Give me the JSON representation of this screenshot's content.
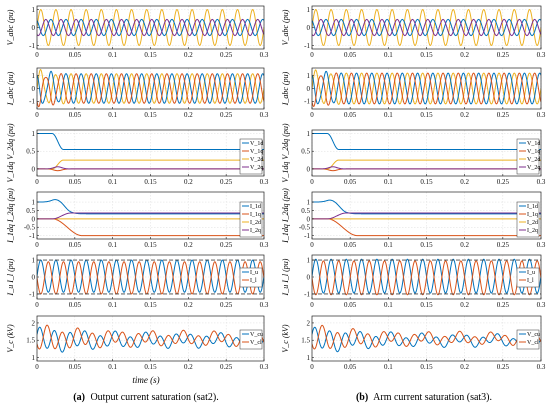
{
  "x_axis_label": "time (s)",
  "captions": [
    {
      "tag": "(a)",
      "text": "Output current saturation (sat2)."
    },
    {
      "tag": "(b)",
      "text": "Arm current saturation (sat3)."
    }
  ],
  "colors": {
    "blue": "#0072BD",
    "orange": "#D95319",
    "yellow": "#EDB120",
    "purple": "#7E2F8E"
  },
  "chart_data": [
    {
      "type": "line",
      "panel": "a1",
      "ylabel": "V_abc (pu)",
      "xlim": [
        0,
        0.3
      ],
      "ylim": [
        -1.2,
        1.2
      ],
      "x_ticks": [
        0,
        0.05,
        0.1,
        0.15,
        0.2,
        0.25,
        0.3
      ],
      "x_tick_labels": [
        "0",
        "0.05",
        "0.1",
        "0.15",
        "0.2",
        "0.25",
        "0.3"
      ],
      "y_ticks": [
        -1,
        0,
        1
      ],
      "y_tick_labels": [
        "-1",
        "0",
        "1"
      ],
      "legend": [],
      "series": [
        {
          "kind": "sine",
          "color": "yellow",
          "amp": 1.0,
          "freq": 50,
          "phase": 0.0
        },
        {
          "kind": "sine",
          "color": "blue",
          "amp": 0.45,
          "freq": 50,
          "phase": 2.094
        },
        {
          "kind": "sine",
          "color": "purple",
          "amp": 0.45,
          "freq": 50,
          "phase": -2.094
        }
      ]
    },
    {
      "type": "line",
      "panel": "a2",
      "ylabel": "I_abc (pu)",
      "xlim": [
        0,
        0.3
      ],
      "ylim": [
        -1.6,
        1.6
      ],
      "x_ticks": [
        0,
        0.05,
        0.1,
        0.15,
        0.2,
        0.25,
        0.3
      ],
      "x_tick_labels": [
        "0",
        "0.05",
        "0.1",
        "0.15",
        "0.2",
        "0.25",
        "0.3"
      ],
      "y_ticks": [
        -1,
        0,
        1
      ],
      "y_tick_labels": [
        "-1",
        "0",
        "1"
      ],
      "legend": [],
      "series": [
        {
          "kind": "sine",
          "color": "yellow",
          "amp": 1.15,
          "freq": 50,
          "phase": 0.0,
          "transient_amp": 0.4,
          "transient_end": 0.04
        },
        {
          "kind": "sine",
          "color": "blue",
          "amp": 1.15,
          "freq": 50,
          "phase": 2.094,
          "transient_amp": 0.4,
          "transient_end": 0.04
        },
        {
          "kind": "sine",
          "color": "orange",
          "amp": 1.15,
          "freq": 50,
          "phase": -2.094,
          "transient_amp": 0.4,
          "transient_end": 0.04
        }
      ]
    },
    {
      "type": "line",
      "panel": "a3",
      "ylabel": "V_1dq V_2dq (pu)",
      "xlim": [
        0,
        0.3
      ],
      "ylim": [
        -0.2,
        1.1
      ],
      "x_ticks": [
        0,
        0.05,
        0.1,
        0.15,
        0.2,
        0.25,
        0.3
      ],
      "x_tick_labels": [
        "0",
        "0.05",
        "0.1",
        "0.15",
        "0.2",
        "0.25",
        "0.3"
      ],
      "y_ticks": [
        0,
        0.5,
        1
      ],
      "y_tick_labels": [
        "0",
        "0.5",
        "1"
      ],
      "legend": [
        "V_1d",
        "V_1q",
        "V_2d",
        "V_2q"
      ],
      "series": [
        {
          "kind": "step",
          "color": "blue",
          "y0": 1.0,
          "y1": 0.55,
          "t0": 0.02,
          "t1": 0.035
        },
        {
          "kind": "step",
          "color": "orange",
          "y0": 0.0,
          "y1": 0.0,
          "t0": 0.02,
          "t1": 0.035,
          "bump": -0.05
        },
        {
          "kind": "step",
          "color": "yellow",
          "y0": 0.0,
          "y1": 0.25,
          "t0": 0.02,
          "t1": 0.035
        },
        {
          "kind": "step",
          "color": "purple",
          "y0": 0.0,
          "y1": 0.0,
          "t0": 0.02,
          "t1": 0.035,
          "bump": 0.06
        }
      ]
    },
    {
      "type": "line",
      "panel": "a4",
      "ylabel": "I_1dq I_2dq (pu)",
      "xlim": [
        0,
        0.3
      ],
      "ylim": [
        -1.2,
        1.6
      ],
      "x_ticks": [
        0,
        0.05,
        0.1,
        0.15,
        0.2,
        0.25,
        0.3
      ],
      "x_tick_labels": [
        "0",
        "0.05",
        "0.1",
        "0.15",
        "0.2",
        "0.25",
        "0.3"
      ],
      "y_ticks": [
        -1,
        -0.5,
        0,
        0.5,
        1
      ],
      "y_tick_labels": [
        "-1",
        "-0.5",
        "0",
        "0.5",
        "1"
      ],
      "legend": [
        "I_1d",
        "I_1q",
        "I_2d",
        "I_2q"
      ],
      "series": [
        {
          "kind": "step",
          "color": "blue",
          "y0": 1.0,
          "y1": 0.3,
          "t0": 0.02,
          "t1": 0.045,
          "bump": 0.3
        },
        {
          "kind": "step",
          "color": "orange",
          "y0": 0.0,
          "y1": -1.0,
          "t0": 0.02,
          "t1": 0.06
        },
        {
          "kind": "step",
          "color": "yellow",
          "y0": 0.0,
          "y1": 0.0,
          "t0": 0.02,
          "t1": 0.04
        },
        {
          "kind": "step",
          "color": "purple",
          "y0": 0.0,
          "y1": 0.35,
          "t0": 0.02,
          "t1": 0.045
        }
      ]
    },
    {
      "type": "line",
      "panel": "a5",
      "ylabel": "I_u I_l (pu)",
      "xlim": [
        0,
        0.3
      ],
      "ylim": [
        -1.3,
        1.3
      ],
      "x_ticks": [
        0,
        0.05,
        0.1,
        0.15,
        0.2,
        0.25,
        0.3
      ],
      "x_tick_labels": [
        "0",
        "0.05",
        "0.1",
        "0.15",
        "0.2",
        "0.25",
        "0.3"
      ],
      "y_ticks": [
        -1,
        0,
        1
      ],
      "y_tick_labels": [
        "-1",
        "0",
        "1"
      ],
      "legend": [
        "I_u",
        "I_l"
      ],
      "limits": [
        1.0,
        -1.0
      ],
      "series": [
        {
          "kind": "sine",
          "color": "blue",
          "amp": 0.95,
          "freq": 50,
          "phase": 0.0,
          "offset": 0.05
        },
        {
          "kind": "sine",
          "color": "orange",
          "amp": 0.95,
          "freq": 50,
          "phase": 3.1416,
          "offset": -0.05
        }
      ]
    },
    {
      "type": "line",
      "panel": "a6",
      "ylabel": "V_c (kV)",
      "xlim": [
        0,
        0.3
      ],
      "ylim": [
        0.9,
        2.2
      ],
      "x_ticks": [
        0,
        0.05,
        0.1,
        0.15,
        0.2,
        0.25,
        0.3
      ],
      "x_tick_labels": [
        "0",
        "0.05",
        "0.1",
        "0.15",
        "0.2",
        "0.25",
        "0.3"
      ],
      "y_ticks": [
        1,
        1.5,
        2
      ],
      "y_tick_labels": [
        "1",
        "1.5",
        "2"
      ],
      "legend": [
        "V_cu",
        "V_cl"
      ],
      "series": [
        {
          "kind": "damped",
          "color": "blue",
          "base": 1.5,
          "amp0": 0.35,
          "amp1": 0.15,
          "freq": 50,
          "phase": 0.5
        },
        {
          "kind": "damped",
          "color": "orange",
          "base": 1.55,
          "amp0": 0.35,
          "amp1": 0.15,
          "freq": 50,
          "phase": 3.6
        }
      ]
    },
    {
      "type": "line",
      "panel": "b1",
      "ylabel": "V_abc (pu)",
      "xlim": [
        0,
        0.3
      ],
      "ylim": [
        -1.2,
        1.2
      ],
      "x_ticks": [
        0,
        0.05,
        0.1,
        0.15,
        0.2,
        0.25,
        0.3
      ],
      "x_tick_labels": [
        "0",
        "0.05",
        "0.1",
        "0.15",
        "0.2",
        "0.25",
        "0.3"
      ],
      "y_ticks": [
        -1,
        0,
        1
      ],
      "y_tick_labels": [
        "-1",
        "0",
        "1"
      ],
      "legend": [],
      "series": [
        {
          "kind": "sine",
          "color": "yellow",
          "amp": 1.0,
          "freq": 50,
          "phase": 0.0
        },
        {
          "kind": "sine",
          "color": "blue",
          "amp": 0.45,
          "freq": 50,
          "phase": 2.094
        },
        {
          "kind": "sine",
          "color": "purple",
          "amp": 0.45,
          "freq": 50,
          "phase": -2.094
        }
      ]
    },
    {
      "type": "line",
      "panel": "b2",
      "ylabel": "I_abc (pu)",
      "xlim": [
        0,
        0.3
      ],
      "ylim": [
        -1.6,
        1.6
      ],
      "x_ticks": [
        0,
        0.05,
        0.1,
        0.15,
        0.2,
        0.25,
        0.3
      ],
      "x_tick_labels": [
        "0",
        "0.05",
        "0.1",
        "0.15",
        "0.2",
        "0.25",
        "0.3"
      ],
      "y_ticks": [
        -1,
        0,
        1
      ],
      "y_tick_labels": [
        "-1",
        "0",
        "1"
      ],
      "legend": [],
      "series": [
        {
          "kind": "sine",
          "color": "yellow",
          "amp": 1.2,
          "freq": 50,
          "phase": 0.0,
          "transient_amp": 0.3,
          "transient_end": 0.04
        },
        {
          "kind": "sine",
          "color": "blue",
          "amp": 1.2,
          "freq": 50,
          "phase": 2.094,
          "transient_amp": 0.3,
          "transient_end": 0.04
        },
        {
          "kind": "sine",
          "color": "orange",
          "amp": 1.2,
          "freq": 50,
          "phase": -2.094,
          "transient_amp": 0.3,
          "transient_end": 0.04
        }
      ]
    },
    {
      "type": "line",
      "panel": "b3",
      "ylabel": "V_1dq V_2dq (pu)",
      "xlim": [
        0,
        0.3
      ],
      "ylim": [
        -0.2,
        1.1
      ],
      "x_ticks": [
        0,
        0.05,
        0.1,
        0.15,
        0.2,
        0.25,
        0.3
      ],
      "x_tick_labels": [
        "0",
        "0.05",
        "0.1",
        "0.15",
        "0.2",
        "0.25",
        "0.3"
      ],
      "y_ticks": [
        0,
        0.5,
        1
      ],
      "y_tick_labels": [
        "0",
        "0.5",
        "1"
      ],
      "legend": [
        "V_1d",
        "V_1q",
        "V_2d",
        "V_2q"
      ],
      "series": [
        {
          "kind": "step",
          "color": "blue",
          "y0": 1.0,
          "y1": 0.55,
          "t0": 0.02,
          "t1": 0.035
        },
        {
          "kind": "step",
          "color": "orange",
          "y0": 0.0,
          "y1": 0.0,
          "t0": 0.02,
          "t1": 0.035,
          "bump": -0.05
        },
        {
          "kind": "step",
          "color": "yellow",
          "y0": 0.0,
          "y1": 0.25,
          "t0": 0.02,
          "t1": 0.035
        },
        {
          "kind": "step",
          "color": "purple",
          "y0": 0.0,
          "y1": 0.0,
          "t0": 0.02,
          "t1": 0.035,
          "bump": 0.06
        }
      ]
    },
    {
      "type": "line",
      "panel": "b4",
      "ylabel": "I_1dq I_2dq (pu)",
      "xlim": [
        0,
        0.3
      ],
      "ylim": [
        -1.2,
        1.6
      ],
      "x_ticks": [
        0,
        0.05,
        0.1,
        0.15,
        0.2,
        0.25,
        0.3
      ],
      "x_tick_labels": [
        "0",
        "0.05",
        "0.1",
        "0.15",
        "0.2",
        "0.25",
        "0.3"
      ],
      "y_ticks": [
        -1,
        -0.5,
        0,
        0.5,
        1
      ],
      "y_tick_labels": [
        "-1",
        "-0.5",
        "0",
        "0.5",
        "1"
      ],
      "legend": [
        "I_1d",
        "I_1q",
        "I_2d",
        "I_2q"
      ],
      "series": [
        {
          "kind": "step",
          "color": "blue",
          "y0": 1.0,
          "y1": 0.3,
          "t0": 0.02,
          "t1": 0.045,
          "bump": 0.25
        },
        {
          "kind": "step",
          "color": "orange",
          "y0": 0.0,
          "y1": -1.0,
          "t0": 0.02,
          "t1": 0.06
        },
        {
          "kind": "step",
          "color": "yellow",
          "y0": 0.0,
          "y1": 0.0,
          "t0": 0.02,
          "t1": 0.04
        },
        {
          "kind": "step",
          "color": "purple",
          "y0": 0.0,
          "y1": 0.35,
          "t0": 0.02,
          "t1": 0.045
        }
      ]
    },
    {
      "type": "line",
      "panel": "b5",
      "ylabel": "I_u I_l (pu)",
      "xlim": [
        0,
        0.3
      ],
      "ylim": [
        -1.3,
        1.3
      ],
      "x_ticks": [
        0,
        0.05,
        0.1,
        0.15,
        0.2,
        0.25,
        0.3
      ],
      "x_tick_labels": [
        "0",
        "0.05",
        "0.1",
        "0.15",
        "0.2",
        "0.25",
        "0.3"
      ],
      "y_ticks": [
        -1,
        0,
        1
      ],
      "y_tick_labels": [
        "-1",
        "0",
        "1"
      ],
      "legend": [
        "I_u",
        "I_l"
      ],
      "limits": [
        1.0,
        -1.0
      ],
      "series": [
        {
          "kind": "sine",
          "color": "blue",
          "amp": 1.0,
          "freq": 50,
          "phase": 0.0,
          "offset": 0.05
        },
        {
          "kind": "sine",
          "color": "orange",
          "amp": 1.0,
          "freq": 50,
          "phase": 3.1416,
          "offset": -0.05
        }
      ]
    },
    {
      "type": "line",
      "panel": "b6",
      "ylabel": "V_c (kV)",
      "xlim": [
        0,
        0.3
      ],
      "ylim": [
        0.9,
        2.2
      ],
      "x_ticks": [
        0,
        0.05,
        0.1,
        0.15,
        0.2,
        0.25,
        0.3
      ],
      "x_tick_labels": [
        "0",
        "0.05",
        "0.1",
        "0.15",
        "0.2",
        "0.25",
        "0.3"
      ],
      "y_ticks": [
        1,
        1.5,
        2
      ],
      "y_tick_labels": [
        "1",
        "1.5",
        "2"
      ],
      "legend": [
        "V_cu",
        "V_cl"
      ],
      "series": [
        {
          "kind": "damped",
          "color": "blue",
          "base": 1.5,
          "amp0": 0.35,
          "amp1": 0.12,
          "freq": 50,
          "phase": 0.5
        },
        {
          "kind": "damped",
          "color": "orange",
          "base": 1.55,
          "amp0": 0.35,
          "amp1": 0.12,
          "freq": 50,
          "phase": 3.6
        }
      ]
    }
  ]
}
